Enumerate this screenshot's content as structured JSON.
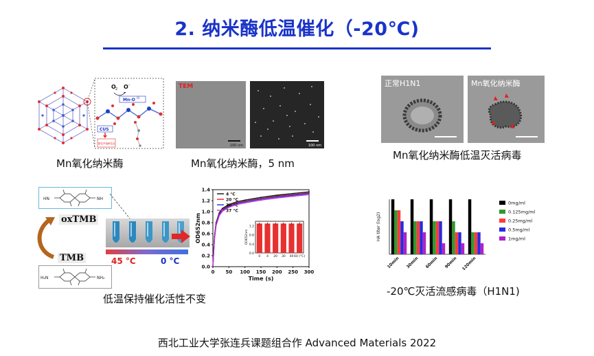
{
  "title": "2. 纳米酶低温催化（-20℃)",
  "captions": {
    "structure": "Mn氧化纳米酶",
    "tem": "Mn氧化纳米酶，5 nm",
    "virus": "Mn氧化纳米酶低温灭活病毒",
    "activity": "低温保持催化活性不变",
    "ha": "-20℃灭活流感病毒（H1N1)"
  },
  "structure_labels": {
    "o2": "O",
    "o2_sub": "2",
    "o2_sup": "·-",
    "mn": "Mn-O",
    "mn_sup": "(I)",
    "cus": "CUS",
    "pink_label": "配位不饱和位点"
  },
  "tem": {
    "label": "TEM",
    "scale1": "100 nm",
    "scale2": "100 nm"
  },
  "virus_images": {
    "left_label": "正常H1N1",
    "right_label": "Mn氧化纳米酶"
  },
  "tmb": {
    "ox_label": "oxTMB",
    "tmb_label": "TMB",
    "nh_label": "HN",
    "nh_right": "NH",
    "h2n_left": "H₂N",
    "nh2_right": "NH₂",
    "temp_hot": "45 °C",
    "temp_cold": "0 °C"
  },
  "chart_data": [
    {
      "type": "line",
      "xlabel": "Time (s)",
      "ylabel": "OD652nm",
      "xlim": [
        0,
        300
      ],
      "ylim": [
        0,
        1.4
      ],
      "xticks": [
        0,
        50,
        100,
        150,
        200,
        250,
        300
      ],
      "yticks": [
        0.0,
        0.2,
        0.4,
        0.6,
        0.8,
        1.0,
        1.2,
        1.4
      ],
      "legend": "top-left",
      "series": [
        {
          "name": "4 °C",
          "color": "#111111",
          "x": [
            0,
            5,
            10,
            20,
            30,
            50,
            75,
            100,
            150,
            200,
            250,
            300
          ],
          "y": [
            0,
            0.55,
            0.8,
            0.98,
            1.06,
            1.13,
            1.18,
            1.21,
            1.26,
            1.3,
            1.33,
            1.36
          ]
        },
        {
          "name": "20 °C",
          "color": "#e02020",
          "x": [
            0,
            5,
            10,
            20,
            30,
            50,
            75,
            100,
            150,
            200,
            250,
            300
          ],
          "y": [
            0,
            0.53,
            0.78,
            0.96,
            1.04,
            1.11,
            1.16,
            1.19,
            1.24,
            1.28,
            1.31,
            1.34
          ]
        },
        {
          "name": "30 °C",
          "color": "#2030d0",
          "x": [
            0,
            5,
            10,
            20,
            30,
            50,
            75,
            100,
            150,
            200,
            250,
            300
          ],
          "y": [
            0,
            0.52,
            0.77,
            0.95,
            1.03,
            1.1,
            1.15,
            1.18,
            1.23,
            1.27,
            1.3,
            1.33
          ]
        },
        {
          "name": "37 °C",
          "color": "#c030d0",
          "x": [
            0,
            5,
            10,
            20,
            30,
            50,
            75,
            100,
            150,
            200,
            250,
            300
          ],
          "y": [
            0,
            0.5,
            0.75,
            0.93,
            1.01,
            1.08,
            1.13,
            1.16,
            1.21,
            1.25,
            1.28,
            1.31
          ]
        }
      ]
    },
    {
      "type": "bar",
      "categories": [
        "0",
        "4",
        "20",
        "30",
        "40",
        "60 (°C)"
      ],
      "values": [
        1.3,
        1.3,
        1.3,
        1.3,
        1.3,
        1.3
      ],
      "ylabel": "OD652nm",
      "ylim": [
        0,
        1.4
      ],
      "yticks": [
        0.0,
        0.4,
        0.8,
        1.2
      ],
      "color": "#e83030"
    },
    {
      "type": "bar",
      "ylabel": "HA titer (log2)",
      "categories": [
        "10min",
        "30min",
        "60min",
        "90min",
        "120min"
      ],
      "ylim": [
        0,
        5
      ],
      "legend": "right",
      "series": [
        {
          "name": "0mg/ml",
          "color": "#000000",
          "values": [
            5,
            5,
            5,
            5,
            5
          ]
        },
        {
          "name": "0.125mg/ml",
          "color": "#2e9a2e",
          "values": [
            4,
            3,
            3,
            3,
            2
          ]
        },
        {
          "name": "0.25mg/ml",
          "color": "#ff3b3b",
          "values": [
            4,
            3,
            3,
            2,
            2
          ]
        },
        {
          "name": "0.5mg/ml",
          "color": "#2a2ae0",
          "values": [
            3,
            3,
            3,
            2,
            2
          ]
        },
        {
          "name": "1mg/ml",
          "color": "#b020c8",
          "values": [
            2,
            2,
            1,
            1,
            1
          ]
        }
      ]
    }
  ],
  "footer": "西北工业大学张连兵课题组合作   Advanced Materials 2022"
}
